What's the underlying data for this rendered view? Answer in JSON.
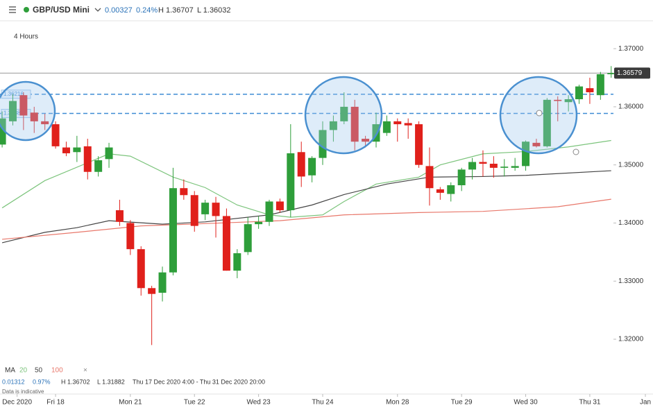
{
  "toolbar": {
    "instrument": "GBP/USD Mini",
    "change": "0.00327",
    "change_pct": "0.24%",
    "high": "H 1.36707",
    "low": "L 1.36032"
  },
  "chart_data": {
    "type": "candlestick",
    "title": "GBP/USD Mini",
    "subtitle": "4 Hours",
    "open": [
      1.3535,
      1.3575,
      1.362,
      1.359,
      1.3575,
      1.357,
      1.353,
      1.3522,
      1.3532,
      1.3488,
      1.351,
      1.3422,
      1.34,
      1.3355,
      1.3288,
      1.328,
      1.3315,
      1.346,
      1.3448,
      1.3415,
      1.3435,
      1.3412,
      1.3318,
      1.335,
      1.3398,
      1.3402,
      1.3437,
      1.3422,
      1.3522,
      1.3482,
      1.3512,
      1.356,
      1.3575,
      1.36,
      1.3545,
      1.354,
      1.3555,
      1.3575,
      1.3572,
      1.357,
      1.3498,
      1.3458,
      1.345,
      1.3465,
      1.3492,
      1.3505,
      1.3502,
      1.3495,
      1.3495,
      1.3498,
      1.3538,
      1.3532,
      1.3612,
      1.3608,
      1.3613,
      1.3632,
      1.362,
      1.3656
    ],
    "high": [
      1.3592,
      1.3622,
      1.3625,
      1.36,
      1.3588,
      1.3575,
      1.354,
      1.355,
      1.3545,
      1.3515,
      1.3538,
      1.344,
      1.3405,
      1.336,
      1.3292,
      1.3325,
      1.3495,
      1.3475,
      1.3455,
      1.344,
      1.3445,
      1.3425,
      1.3355,
      1.341,
      1.3412,
      1.344,
      1.3442,
      1.357,
      1.354,
      1.3515,
      1.3575,
      1.3585,
      1.3625,
      1.3612,
      1.355,
      1.359,
      1.3585,
      1.358,
      1.358,
      1.3575,
      1.353,
      1.3462,
      1.347,
      1.3495,
      1.3512,
      1.3525,
      1.3515,
      1.351,
      1.3512,
      1.3542,
      1.3545,
      1.3615,
      1.3618,
      1.362,
      1.3638,
      1.365,
      1.366,
      1.367
    ],
    "low": [
      1.353,
      1.3568,
      1.356,
      1.3555,
      1.356,
      1.3528,
      1.3515,
      1.3505,
      1.3475,
      1.348,
      1.3495,
      1.3395,
      1.3345,
      1.3275,
      1.319,
      1.3265,
      1.331,
      1.344,
      1.3385,
      1.3405,
      1.3375,
      1.3318,
      1.3305,
      1.3345,
      1.339,
      1.3395,
      1.3418,
      1.341,
      1.3462,
      1.347,
      1.35,
      1.354,
      1.357,
      1.3525,
      1.353,
      1.353,
      1.355,
      1.354,
      1.3545,
      1.3495,
      1.343,
      1.344,
      1.3437,
      1.3455,
      1.3475,
      1.348,
      1.3478,
      1.348,
      1.349,
      1.349,
      1.353,
      1.353,
      1.3575,
      1.3592,
      1.3605,
      1.3605,
      1.3612,
      1.365
    ],
    "close": [
      1.358,
      1.361,
      1.3585,
      1.3575,
      1.357,
      1.3532,
      1.352,
      1.353,
      1.3488,
      1.3508,
      1.353,
      1.3402,
      1.3355,
      1.3288,
      1.3278,
      1.3315,
      1.346,
      1.3448,
      1.3395,
      1.3435,
      1.3412,
      1.3318,
      1.3348,
      1.3398,
      1.3402,
      1.3437,
      1.3422,
      1.352,
      1.348,
      1.3512,
      1.356,
      1.3575,
      1.36,
      1.354,
      1.354,
      1.357,
      1.3575,
      1.357,
      1.3568,
      1.35,
      1.346,
      1.3452,
      1.3465,
      1.3492,
      1.3505,
      1.3502,
      1.3495,
      1.3497,
      1.3498,
      1.354,
      1.3532,
      1.3612,
      1.361,
      1.3613,
      1.3635,
      1.3625,
      1.3656,
      1.3658
    ],
    "up_color": "#2e9e3a",
    "down_color": "#e0201b",
    "ma_label": "MA",
    "series": [
      {
        "name": "20",
        "color": "#7cc47c",
        "x": [
          0,
          4,
          10,
          12,
          16,
          19,
          22,
          25,
          27,
          30,
          32,
          35,
          39,
          41,
          45,
          49,
          53,
          57
        ],
        "values": [
          1.3426,
          1.3473,
          1.3519,
          1.3515,
          1.3479,
          1.3461,
          1.3431,
          1.3414,
          1.341,
          1.3414,
          1.3437,
          1.3467,
          1.3479,
          1.35,
          1.3519,
          1.3523,
          1.3531,
          1.3542
        ]
      },
      {
        "name": "50",
        "color": "#444444",
        "x": [
          0,
          4,
          7,
          10,
          15,
          19,
          25,
          29,
          32,
          36,
          40,
          45,
          49,
          57
        ],
        "values": [
          1.3366,
          1.3384,
          1.3392,
          1.3404,
          1.3398,
          1.3402,
          1.3414,
          1.3431,
          1.3449,
          1.3467,
          1.3479,
          1.348,
          1.3482,
          1.349
        ]
      },
      {
        "name": "100",
        "color": "#e8776a",
        "x": [
          0,
          7,
          13,
          19,
          26,
          32,
          39,
          45,
          52,
          57
        ],
        "values": [
          1.3372,
          1.3384,
          1.3395,
          1.3399,
          1.3404,
          1.3414,
          1.3418,
          1.342,
          1.3428,
          1.3441
        ]
      }
    ],
    "levels": [
      1.36216,
      1.35885
    ],
    "last_price": 1.36579,
    "xlim": [
      -0.2,
      60.2
    ],
    "ylim": [
      1.3163,
      1.3736
    ],
    "yticks": [
      {
        "value": 1.32,
        "label": "1.32000"
      },
      {
        "value": 1.33,
        "label": "1.33000"
      },
      {
        "value": 1.34,
        "label": "1.34000"
      },
      {
        "value": 1.35,
        "label": "1.35000"
      },
      {
        "value": 1.36,
        "label": "1.36000"
      },
      {
        "value": 1.37,
        "label": "1.37000"
      }
    ],
    "xticks": [
      {
        "value": 1.4,
        "label": "Dec 2020"
      },
      {
        "value": 5,
        "label": "Fri 18"
      },
      {
        "value": 12,
        "label": "Mon 21"
      },
      {
        "value": 18,
        "label": "Tue 22"
      },
      {
        "value": 24,
        "label": "Wed 23"
      },
      {
        "value": 30,
        "label": "Thu 24"
      },
      {
        "value": 37,
        "label": "Mon 28"
      },
      {
        "value": 43,
        "label": "Tue 29"
      },
      {
        "value": 49,
        "label": "Wed 30"
      },
      {
        "value": 55,
        "label": "Thu 31"
      },
      {
        "value": 60.2,
        "label": "Jan"
      }
    ]
  },
  "footer": {
    "change": "0.01312",
    "change_pct": "0.97%",
    "high": "H 1.36702",
    "low": "L 1.31882",
    "range": "Thu 17 Dec 2020 4:00 - Thu 31 Dec 2020 20:00",
    "note": "Data is indicative"
  }
}
